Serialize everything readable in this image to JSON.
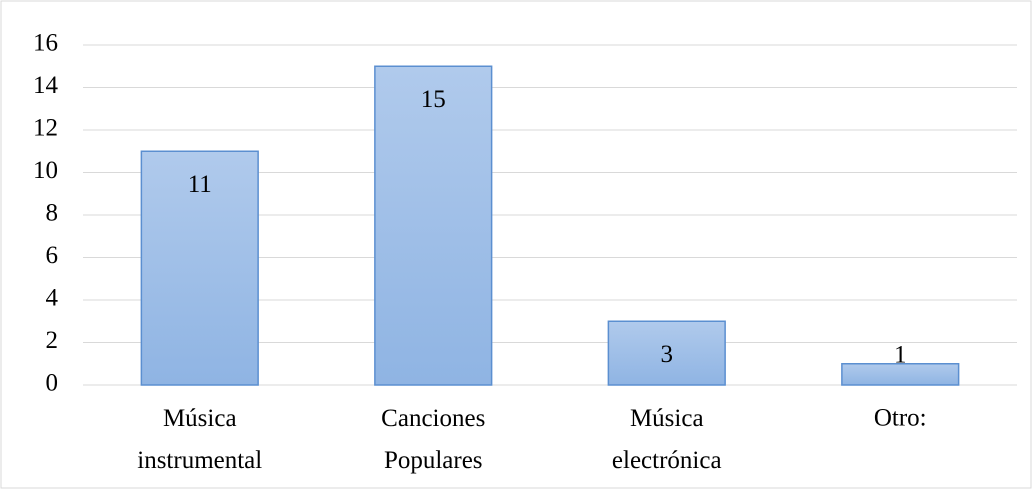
{
  "chart_data": {
    "type": "bar",
    "categories": [
      "Música instrumental",
      "Canciones Populares",
      "Música electrónica",
      "Otro:"
    ],
    "values": [
      11,
      15,
      3,
      1
    ],
    "color": "#9dbde8",
    "ylim": [
      0,
      16
    ],
    "yticks": [
      0,
      2,
      4,
      6,
      8,
      10,
      12,
      14,
      16
    ],
    "grid": true
  }
}
